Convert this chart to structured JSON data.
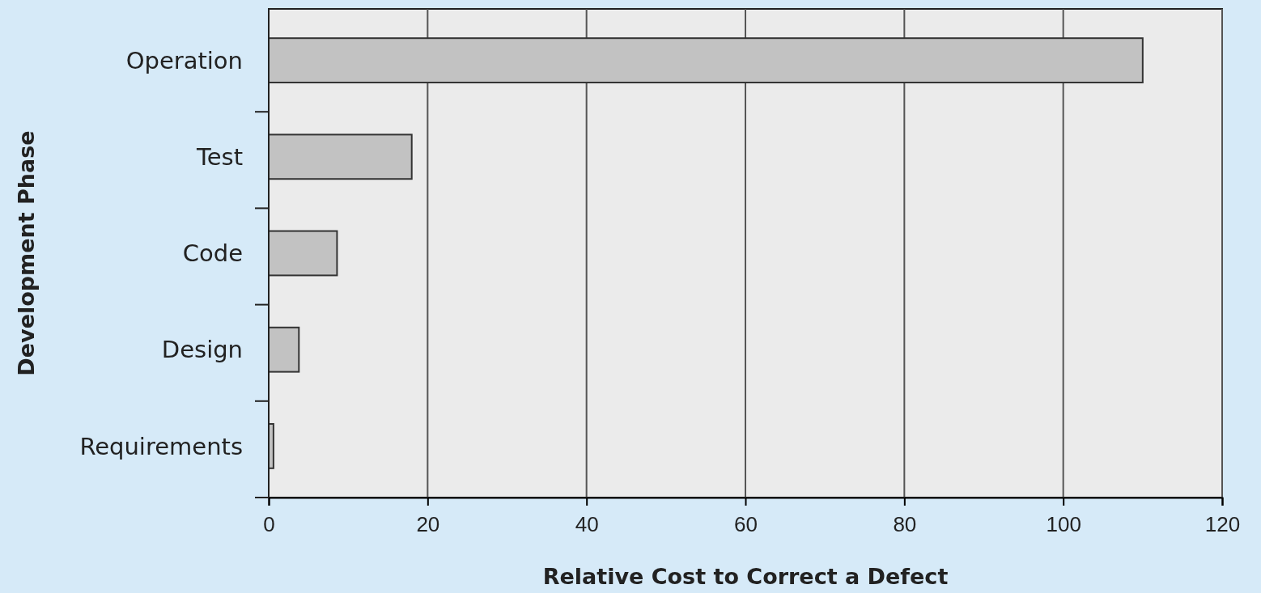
{
  "chart_data": {
    "type": "bar",
    "orientation": "horizontal",
    "xlabel": "Relative Cost to Correct a Defect",
    "ylabel": "Development Phase",
    "categories": [
      "Operation",
      "Test",
      "Code",
      "Design",
      "Requirements"
    ],
    "values": [
      110,
      18,
      8.6,
      3.8,
      0.6
    ],
    "color": "#c2c2c2",
    "xlim": [
      0,
      120
    ],
    "xticks": [
      0,
      20,
      40,
      60,
      80,
      100,
      120
    ],
    "grid": "x"
  }
}
